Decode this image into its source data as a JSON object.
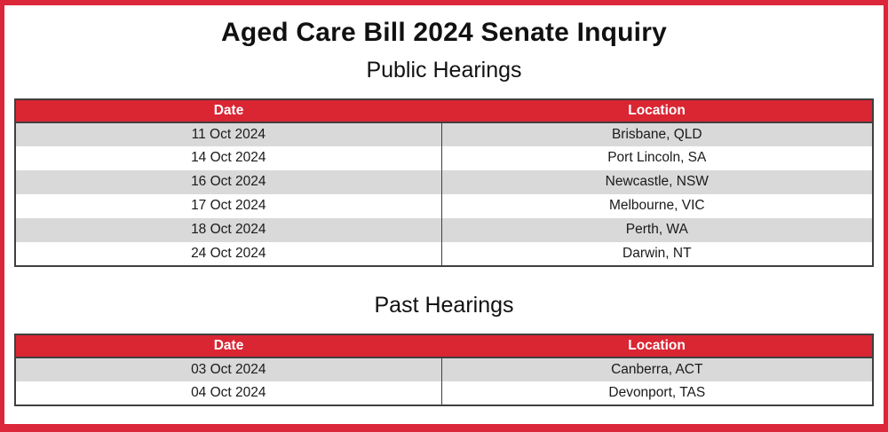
{
  "page": {
    "title": "Aged Care Bill 2024 Senate Inquiry",
    "colors": {
      "header_red": "#da2533",
      "page_border_red": "#dc2639",
      "row_alt_gray": "#d9d9d9",
      "table_border_gray": "#3f3f3f"
    }
  },
  "sections": [
    {
      "heading": "Public Hearings",
      "table": {
        "columns": [
          "Date",
          "Location"
        ],
        "rows": [
          [
            "11 Oct 2024",
            "Brisbane, QLD"
          ],
          [
            "14 Oct 2024",
            "Port Lincoln, SA"
          ],
          [
            "16 Oct 2024",
            "Newcastle, NSW"
          ],
          [
            "17 Oct 2024",
            "Melbourne, VIC"
          ],
          [
            "18 Oct 2024",
            "Perth, WA"
          ],
          [
            "24 Oct 2024",
            "Darwin, NT"
          ]
        ]
      }
    },
    {
      "heading": "Past Hearings",
      "table": {
        "columns": [
          "Date",
          "Location"
        ],
        "rows": [
          [
            "03 Oct 2024",
            "Canberra, ACT"
          ],
          [
            "04 Oct 2024",
            "Devonport, TAS"
          ]
        ]
      }
    }
  ]
}
